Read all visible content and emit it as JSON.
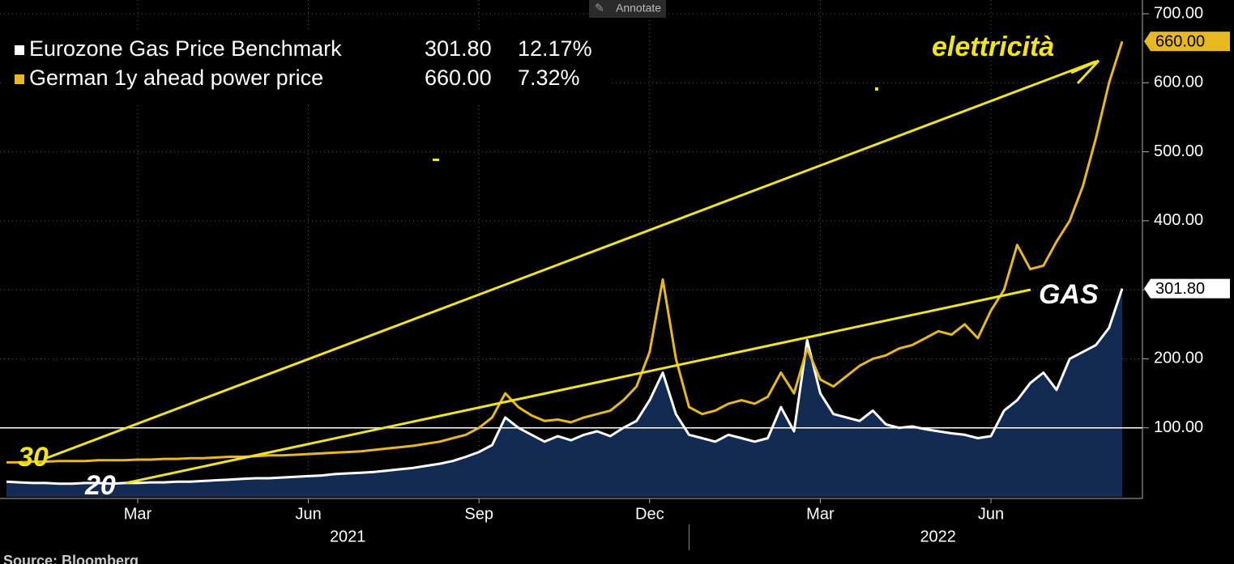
{
  "toolbar": {
    "annotate": "Annotate"
  },
  "chart_data": {
    "type": "line",
    "categories": [
      null,
      null,
      null,
      null,
      null,
      null,
      null,
      null,
      null,
      null,
      "Mar",
      null,
      null,
      null,
      null,
      null,
      null,
      null,
      null,
      null,
      null,
      null,
      null,
      "Jun",
      null,
      null,
      null,
      null,
      null,
      null,
      null,
      null,
      null,
      null,
      null,
      null,
      "Sep",
      null,
      null,
      null,
      null,
      null,
      null,
      null,
      null,
      null,
      null,
      null,
      null,
      "Dec",
      null,
      null,
      null,
      null,
      null,
      null,
      null,
      null,
      null,
      null,
      null,
      null,
      "Mar",
      null,
      null,
      null,
      null,
      null,
      null,
      null,
      null,
      null,
      null,
      null,
      null,
      "Jun",
      null,
      null,
      null,
      null,
      null,
      null,
      null,
      null,
      null,
      null
    ],
    "years": [
      "2021",
      "2022"
    ],
    "series": [
      {
        "name": "Eurozone Gas Price Benchmark",
        "color": "#ffffff",
        "fill": "#132a52",
        "last_label": "301.80",
        "change_label": "12.17%",
        "values": [
          22,
          21,
          20,
          20,
          19,
          19,
          20,
          20,
          19,
          20,
          20,
          21,
          21,
          22,
          22,
          23,
          24,
          25,
          26,
          27,
          27,
          28,
          29,
          30,
          31,
          33,
          34,
          35,
          36,
          38,
          40,
          42,
          45,
          48,
          52,
          58,
          65,
          75,
          115,
          100,
          90,
          80,
          88,
          82,
          90,
          95,
          88,
          100,
          110,
          140,
          180,
          120,
          90,
          85,
          80,
          90,
          85,
          80,
          85,
          130,
          95,
          227,
          150,
          120,
          115,
          110,
          125,
          105,
          100,
          102,
          98,
          95,
          92,
          90,
          85,
          88,
          125,
          140,
          165,
          180,
          155,
          200,
          210,
          220,
          245,
          301.8
        ]
      },
      {
        "name": "German 1y ahead power price",
        "color": "#e8b820",
        "last_label": "660.00",
        "change_label": "7.32%",
        "values": [
          50,
          50,
          51,
          51,
          52,
          52,
          52,
          53,
          53,
          53,
          54,
          54,
          55,
          55,
          56,
          56,
          57,
          58,
          58,
          59,
          60,
          60,
          61,
          62,
          63,
          64,
          65,
          66,
          68,
          70,
          72,
          74,
          77,
          80,
          85,
          90,
          100,
          115,
          150,
          130,
          118,
          110,
          112,
          108,
          115,
          120,
          125,
          140,
          160,
          210,
          315,
          200,
          130,
          120,
          125,
          135,
          140,
          135,
          145,
          180,
          150,
          215,
          170,
          160,
          175,
          190,
          200,
          205,
          215,
          220,
          230,
          240,
          235,
          250,
          230,
          270,
          300,
          365,
          330,
          335,
          370,
          400,
          450,
          520,
          600,
          660
        ]
      }
    ],
    "ylim": [
      0,
      720
    ],
    "yticks": [
      {
        "value": 100,
        "label": "100.00"
      },
      {
        "value": 200,
        "label": "200.00"
      },
      {
        "value": 300,
        "label": "300.00"
      },
      {
        "value": 400,
        "label": "400.00"
      },
      {
        "value": 500,
        "label": "500.00"
      },
      {
        "value": 600,
        "label": "600.00"
      },
      {
        "value": 700,
        "label": "700.00"
      }
    ],
    "hline": 100,
    "grid": true,
    "annotations": [
      "elettricità",
      "GAS",
      "30",
      "20"
    ],
    "source": "Source: Bloomberg"
  }
}
